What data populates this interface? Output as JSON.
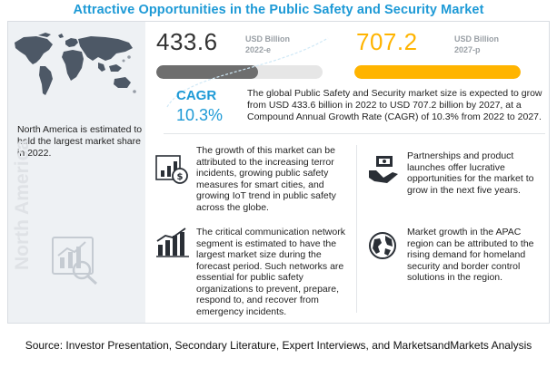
{
  "title": "Attractive Opportunities in the Public Safety and Security  Market",
  "left_panel": {
    "text": "North America is estimated to hold the largest market share in 2022.",
    "vertical_label": "North America"
  },
  "colors": {
    "accent": "#1e9ad6",
    "highlight": "#ffb400",
    "bar_base": "#707070"
  },
  "chart_data": {
    "type": "bar",
    "orientation": "horizontal",
    "unit": "USD Billion",
    "categories": [
      "2022-e",
      "2027-p"
    ],
    "values": [
      433.6,
      707.2
    ],
    "value_labels": [
      "433.6",
      "707.2"
    ],
    "xlim": [
      0,
      707.2
    ],
    "cagr_label": "CAGR",
    "cagr_value": "10.3%"
  },
  "cagr_text": "The global Public Safety and Security market size is expected to grow from USD 433.6 billion in 2022 to USD 707.2 billion by 2027, at a Compound Annual Growth Rate (CAGR) of 10.3% from 2022 to 2027.",
  "insights": [
    {
      "icon": "growth-chart-icon",
      "text": "The growth of this market can be attributed to the increasing terror incidents, growing public safety measures for smart cities, and growing IoT trend in public safety across the globe."
    },
    {
      "icon": "handshake-money-icon",
      "text": "Partnerships and product launches offer lucrative opportunities for the market to grow in the next five years."
    },
    {
      "icon": "bar-trend-icon",
      "text": "The critical communication network segment is estimated to have the largest market size during the forecast period. Such networks are essential for public safety organizations to prevent, prepare, respond to, and recover from emergency incidents."
    },
    {
      "icon": "globe-location-icon",
      "text": "Market growth in the APAC region can be attributed to the rising demand for homeland security and border control solutions in the region."
    }
  ],
  "source": "Source: Investor Presentation, Secondary Literature, Expert Interviews, and MarketsandMarkets Analysis"
}
